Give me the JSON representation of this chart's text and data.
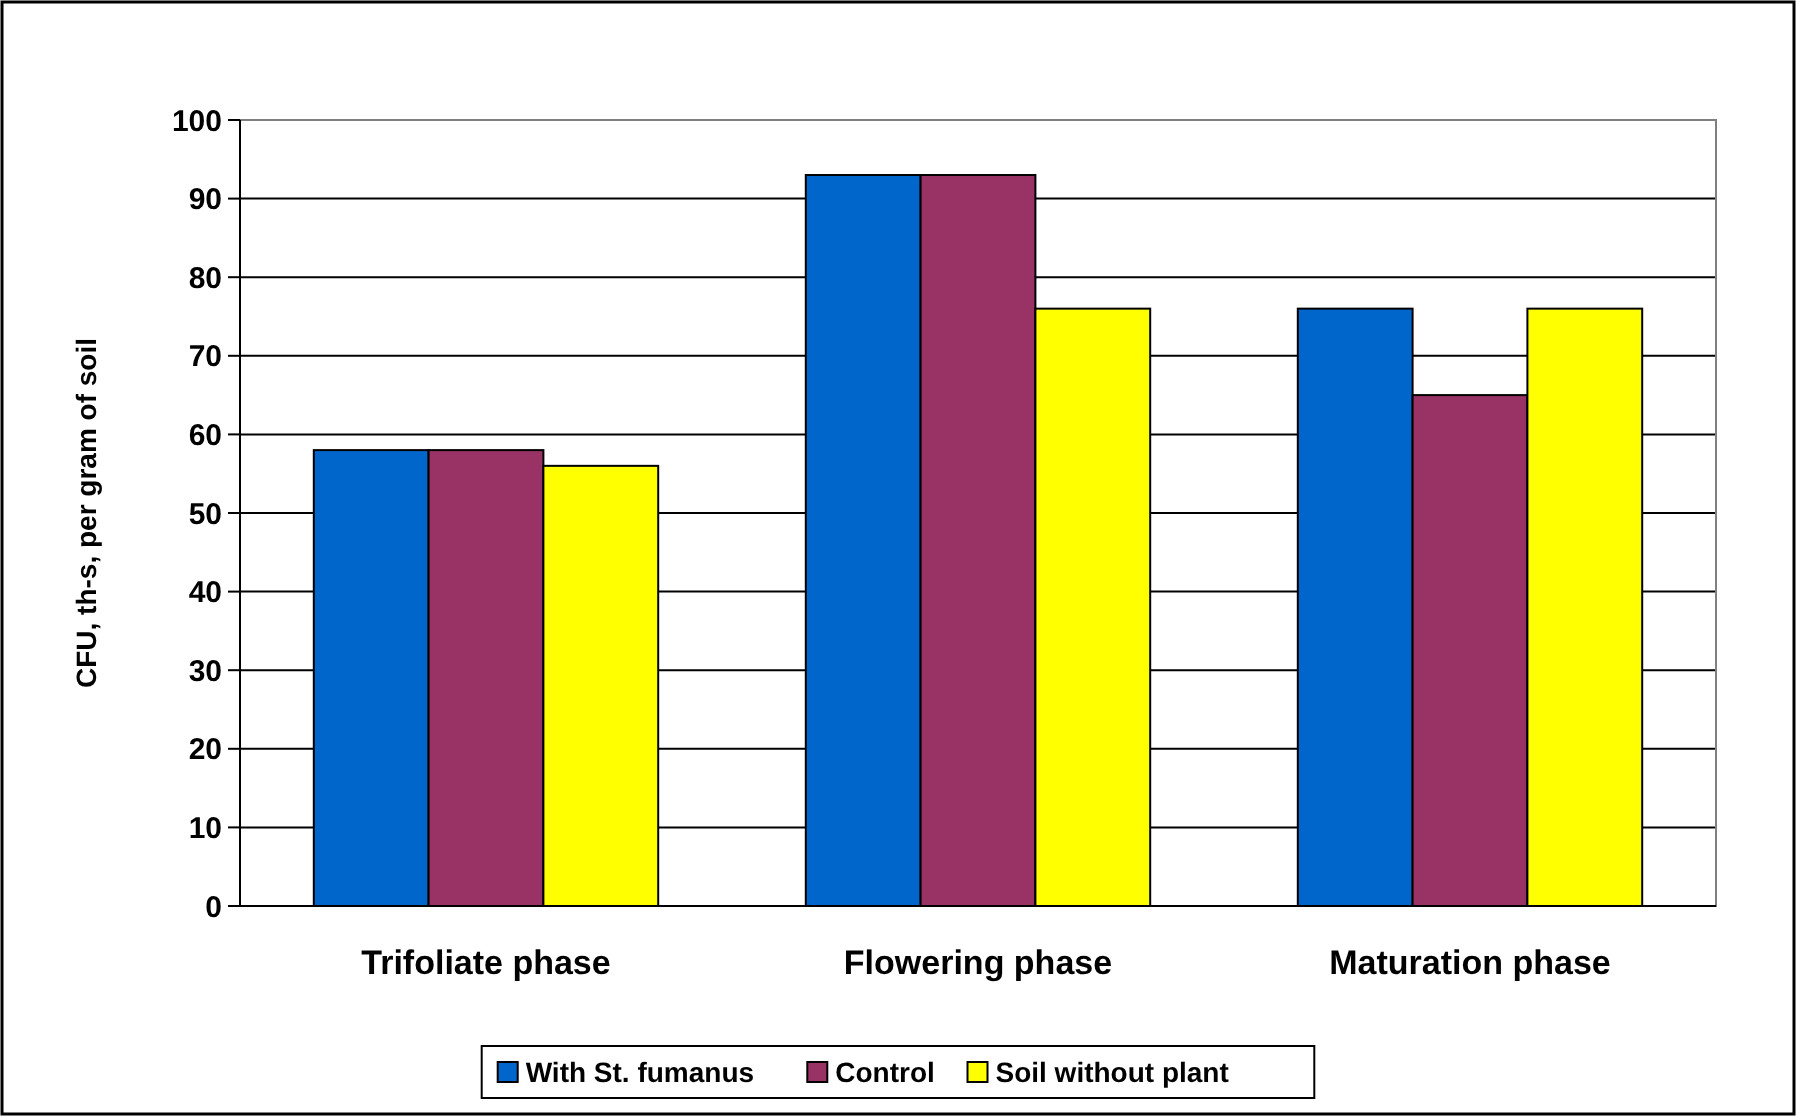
{
  "chart_data": {
    "type": "bar",
    "ylabel": "CFU, th-s,  per gram of soil",
    "categories": [
      "Trifoliate phase",
      "Flowering phase",
      "Maturation phase"
    ],
    "series": [
      {
        "name": "With St. fumanus",
        "color": "#0066cc",
        "values": [
          58,
          93,
          76
        ]
      },
      {
        "name": "Control",
        "color": "#993366",
        "values": [
          58,
          93,
          65
        ]
      },
      {
        "name": "Soil without plant",
        "color": "#ffff00",
        "values": [
          56,
          76,
          76
        ]
      }
    ],
    "ylim": [
      0,
      100
    ],
    "yticks": [
      0,
      10,
      20,
      30,
      40,
      50,
      60,
      70,
      80,
      90,
      100
    ],
    "grid": "y",
    "legend": "bottom"
  }
}
